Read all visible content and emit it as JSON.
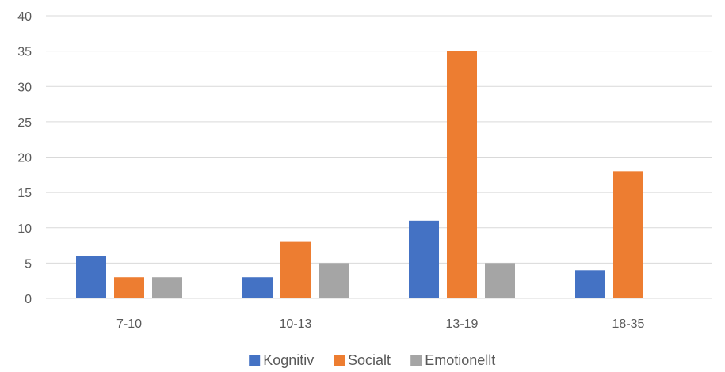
{
  "chart_data": {
    "type": "bar",
    "title": "",
    "xlabel": "",
    "ylabel": "",
    "categories": [
      "7-10",
      "10-13",
      "13-19",
      "18-35"
    ],
    "series": [
      {
        "name": "Kognitiv",
        "color": "#4472C4",
        "values": [
          6,
          3,
          11,
          4
        ]
      },
      {
        "name": "Socialt",
        "color": "#ED7D31",
        "values": [
          3,
          8,
          35,
          18
        ]
      },
      {
        "name": "Emotionellt",
        "color": "#A5A5A5",
        "values": [
          3,
          5,
          5,
          0
        ]
      }
    ],
    "ylim": [
      0,
      40
    ],
    "yticks": [
      0,
      5,
      10,
      15,
      20,
      25,
      30,
      35,
      40
    ],
    "grid": true,
    "legend_position": "bottom"
  }
}
